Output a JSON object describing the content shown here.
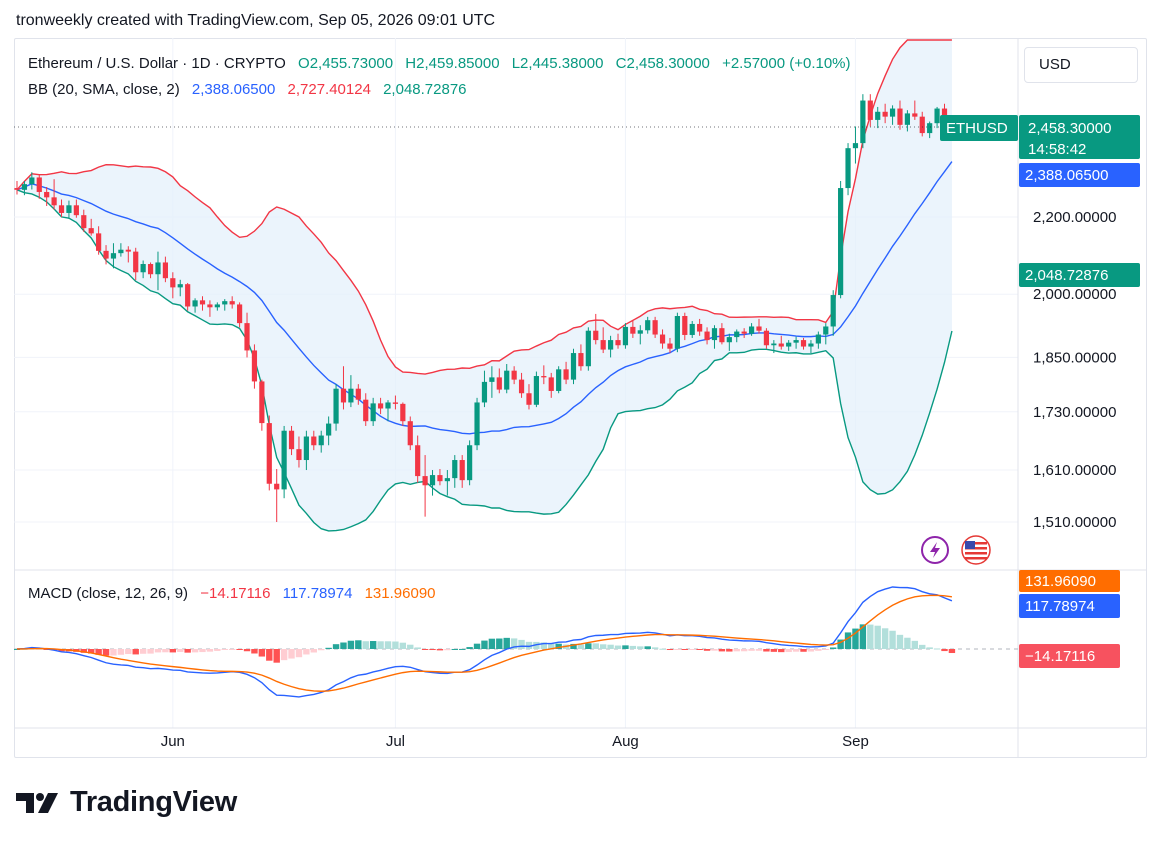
{
  "caption": "tronweekly created with TradingView.com, Sep 05, 2026 09:01 UTC",
  "currency_button": "USD",
  "symbol": {
    "title": "Ethereum / U.S. Dollar · 1D · CRYPTO",
    "open": "O2,455.73000",
    "high": "H2,459.85000",
    "low": "L2,445.38000",
    "close": "C2,458.30000",
    "change": "+2.57000 (+0.10%)"
  },
  "bb_legend": {
    "label": "BB (20, SMA, close, 2)",
    "basis": "2,388.06500",
    "upper": "2,727.40124",
    "lower": "2,048.72876"
  },
  "macd_legend": {
    "label": "MACD (close, 12, 26, 9)",
    "histogram": "−14.17116",
    "macd": "117.78974",
    "signal": "131.96090"
  },
  "badges": {
    "symbol_tag": "ETHUSD",
    "price": "2,458.30000",
    "countdown": "14:58:42",
    "bb_basis": "2,388.06500",
    "bb_lower": "2,048.72876",
    "macd_signal": "131.96090",
    "macd_line": "117.78974",
    "histogram": "−14.17116"
  },
  "colors": {
    "up": "#089981",
    "down": "#f23645",
    "bb_basis": "#2962ff",
    "bb_upper": "#f23645",
    "bb_lower": "#089981",
    "bb_fill": "#e3f0fb",
    "macd_line": "#2962ff",
    "signal_line": "#ff6d00",
    "hist_up_strong": "#26a69a",
    "hist_up_weak": "#b2dfdb",
    "hist_down_strong": "#ff5252",
    "hist_down_weak": "#ffcdd2"
  },
  "footer_logo": "TradingView",
  "icons": [
    "tradingview-logo-icon",
    "lightning-icon",
    "us-flag-icon"
  ],
  "chart_data": [
    {
      "type": "candlestick",
      "title": "Ethereum / U.S. Dollar · 1D · CRYPTO",
      "y_ticks": [
        1510,
        1610,
        1730,
        1850,
        2000,
        2200
      ],
      "y_tick_labels": [
        "1,510.00000",
        "1,610.00000",
        "1,730.00000",
        "1,850.00000",
        "2,000.00000",
        "2,200.00000"
      ],
      "y_scale": "log",
      "ylim": [
        1440,
        2870
      ],
      "x_labels": [
        {
          "index": 21,
          "label": "Jun"
        },
        {
          "index": 51,
          "label": "Jul"
        },
        {
          "index": 82,
          "label": "Aug"
        },
        {
          "index": 113,
          "label": "Sep"
        }
      ],
      "last_price": 2458.3,
      "candles": [
        [
          2280,
          2300,
          2262,
          2275
        ],
        [
          2275,
          2300,
          2260,
          2291
        ],
        [
          2291,
          2325,
          2276,
          2310
        ],
        [
          2310,
          2318,
          2250,
          2269
        ],
        [
          2269,
          2283,
          2230,
          2254
        ],
        [
          2254,
          2305,
          2220,
          2232
        ],
        [
          2232,
          2248,
          2200,
          2211
        ],
        [
          2211,
          2245,
          2195,
          2232
        ],
        [
          2232,
          2248,
          2198,
          2205
        ],
        [
          2205,
          2220,
          2160,
          2170
        ],
        [
          2170,
          2195,
          2150,
          2156
        ],
        [
          2156,
          2175,
          2100,
          2110
        ],
        [
          2110,
          2125,
          2075,
          2090
        ],
        [
          2090,
          2130,
          2065,
          2104
        ],
        [
          2104,
          2130,
          2095,
          2113
        ],
        [
          2113,
          2122,
          2080,
          2108
        ],
        [
          2108,
          2118,
          2035,
          2055
        ],
        [
          2055,
          2085,
          2040,
          2076
        ],
        [
          2076,
          2080,
          2040,
          2050
        ],
        [
          2050,
          2108,
          2010,
          2080
        ],
        [
          2080,
          2095,
          2030,
          2040
        ],
        [
          2040,
          2055,
          1990,
          2017
        ],
        [
          2017,
          2036,
          1995,
          2025
        ],
        [
          2025,
          2028,
          1960,
          1970
        ],
        [
          1970,
          1990,
          1955,
          1985
        ],
        [
          1985,
          1995,
          1960,
          1975
        ],
        [
          1975,
          1985,
          1945,
          1968
        ],
        [
          1968,
          1980,
          1960,
          1975
        ],
        [
          1975,
          1988,
          1960,
          1983
        ],
        [
          1983,
          1995,
          1965,
          1975
        ],
        [
          1975,
          1980,
          1920,
          1930
        ],
        [
          1930,
          1955,
          1850,
          1866
        ],
        [
          1866,
          1880,
          1780,
          1796
        ],
        [
          1796,
          1800,
          1690,
          1706
        ],
        [
          1706,
          1722,
          1570,
          1583
        ],
        [
          1583,
          1612,
          1510,
          1572
        ],
        [
          1572,
          1700,
          1555,
          1690
        ],
        [
          1690,
          1700,
          1640,
          1652
        ],
        [
          1652,
          1678,
          1615,
          1630
        ],
        [
          1630,
          1690,
          1610,
          1678
        ],
        [
          1678,
          1690,
          1650,
          1660
        ],
        [
          1660,
          1690,
          1645,
          1680
        ],
        [
          1680,
          1720,
          1660,
          1705
        ],
        [
          1705,
          1790,
          1690,
          1780
        ],
        [
          1780,
          1830,
          1735,
          1750
        ],
        [
          1750,
          1810,
          1740,
          1780
        ],
        [
          1780,
          1790,
          1745,
          1756
        ],
        [
          1756,
          1770,
          1700,
          1710
        ],
        [
          1710,
          1760,
          1700,
          1748
        ],
        [
          1748,
          1760,
          1725,
          1737
        ],
        [
          1737,
          1755,
          1710,
          1750
        ],
        [
          1750,
          1765,
          1735,
          1747
        ],
        [
          1747,
          1750,
          1700,
          1710
        ],
        [
          1710,
          1720,
          1650,
          1660
        ],
        [
          1660,
          1680,
          1585,
          1598
        ],
        [
          1598,
          1640,
          1520,
          1580
        ],
        [
          1580,
          1610,
          1560,
          1600
        ],
        [
          1600,
          1612,
          1580,
          1588
        ],
        [
          1588,
          1610,
          1560,
          1594
        ],
        [
          1594,
          1640,
          1575,
          1630
        ],
        [
          1630,
          1640,
          1575,
          1590
        ],
        [
          1590,
          1670,
          1580,
          1660
        ],
        [
          1660,
          1760,
          1650,
          1750
        ],
        [
          1750,
          1820,
          1740,
          1795
        ],
        [
          1795,
          1830,
          1760,
          1805
        ],
        [
          1805,
          1825,
          1770,
          1778
        ],
        [
          1778,
          1835,
          1770,
          1820
        ],
        [
          1820,
          1830,
          1790,
          1800
        ],
        [
          1800,
          1815,
          1760,
          1770
        ],
        [
          1770,
          1790,
          1735,
          1745
        ],
        [
          1745,
          1818,
          1740,
          1808
        ],
        [
          1808,
          1832,
          1790,
          1805
        ],
        [
          1805,
          1815,
          1760,
          1775
        ],
        [
          1775,
          1830,
          1770,
          1823
        ],
        [
          1823,
          1840,
          1790,
          1800
        ],
        [
          1800,
          1870,
          1790,
          1860
        ],
        [
          1860,
          1880,
          1820,
          1830
        ],
        [
          1830,
          1920,
          1820,
          1912
        ],
        [
          1912,
          1952,
          1880,
          1890
        ],
        [
          1890,
          1920,
          1860,
          1868
        ],
        [
          1868,
          1900,
          1850,
          1890
        ],
        [
          1890,
          1905,
          1870,
          1878
        ],
        [
          1878,
          1930,
          1870,
          1921
        ],
        [
          1921,
          1935,
          1895,
          1905
        ],
        [
          1905,
          1925,
          1880,
          1913
        ],
        [
          1913,
          1945,
          1905,
          1937
        ],
        [
          1937,
          1945,
          1895,
          1903
        ],
        [
          1903,
          1915,
          1870,
          1882
        ],
        [
          1882,
          1895,
          1860,
          1870
        ],
        [
          1870,
          1955,
          1862,
          1947
        ],
        [
          1947,
          1955,
          1890,
          1902
        ],
        [
          1902,
          1935,
          1895,
          1928
        ],
        [
          1928,
          1940,
          1900,
          1910
        ],
        [
          1910,
          1920,
          1880,
          1890
        ],
        [
          1890,
          1925,
          1870,
          1918
        ],
        [
          1918,
          1930,
          1880,
          1885
        ],
        [
          1885,
          1905,
          1865,
          1897
        ],
        [
          1897,
          1915,
          1885,
          1910
        ],
        [
          1910,
          1918,
          1895,
          1905
        ],
        [
          1905,
          1930,
          1900,
          1922
        ],
        [
          1922,
          1940,
          1905,
          1912
        ],
        [
          1912,
          1918,
          1870,
          1878
        ],
        [
          1878,
          1890,
          1860,
          1882
        ],
        [
          1882,
          1900,
          1868,
          1875
        ],
        [
          1875,
          1890,
          1865,
          1884
        ],
        [
          1884,
          1898,
          1870,
          1890
        ],
        [
          1890,
          1895,
          1868,
          1875
        ],
        [
          1875,
          1890,
          1860,
          1882
        ],
        [
          1882,
          1910,
          1870,
          1903
        ],
        [
          1903,
          1930,
          1880,
          1922
        ],
        [
          1922,
          2010,
          1900,
          1998
        ],
        [
          1998,
          2300,
          1990,
          2280
        ],
        [
          2280,
          2410,
          2260,
          2395
        ],
        [
          2395,
          2460,
          2350,
          2410
        ],
        [
          2410,
          2560,
          2395,
          2540
        ],
        [
          2540,
          2560,
          2460,
          2480
        ],
        [
          2480,
          2520,
          2455,
          2505
        ],
        [
          2505,
          2530,
          2470,
          2490
        ],
        [
          2490,
          2525,
          2465,
          2515
        ],
        [
          2515,
          2540,
          2450,
          2465
        ],
        [
          2465,
          2510,
          2445,
          2500
        ],
        [
          2500,
          2540,
          2480,
          2490
        ],
        [
          2490,
          2505,
          2430,
          2440
        ],
        [
          2440,
          2475,
          2425,
          2470
        ],
        [
          2470,
          2520,
          2455,
          2515
        ],
        [
          2515,
          2530,
          2450,
          2456
        ],
        [
          2456,
          2459,
          2445,
          2458
        ]
      ]
    },
    {
      "type": "line",
      "title": "MACD (close, 12, 26, 9)",
      "series": [
        {
          "name": "MACD",
          "color": "#2962ff"
        },
        {
          "name": "Signal",
          "color": "#ff6d00"
        },
        {
          "name": "Histogram"
        }
      ],
      "last_values": {
        "histogram": -14.17116,
        "macd": 117.78974,
        "signal": 131.9609
      }
    }
  ]
}
